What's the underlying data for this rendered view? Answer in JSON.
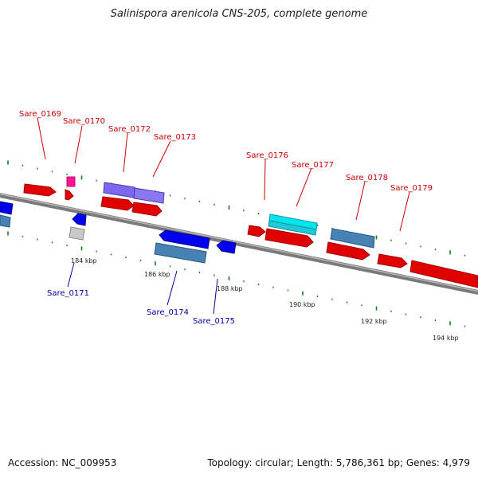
{
  "title": "Salinispora arenicola CNS-205, complete genome",
  "footer": {
    "accession": "Accession: NC_009953",
    "summary": "Topology: circular; Length: 5,786,361 bp; Genes: 4,979"
  },
  "colors": {
    "backbone": "#7a7a7a",
    "forward_gene": "#ff0000",
    "reverse_gene": "#0000ee",
    "steelblue_gene": "#4682b4",
    "purple_gene": "#7b68ee",
    "cyan_gene": "#00e5ee",
    "pink_gene": "#ff1493",
    "gray_gene": "#c8c8c8",
    "tick": "#1a7a1a",
    "forward_label": "#cc0000",
    "reverse_label": "#0000aa"
  },
  "scale_labels": [
    "184 kbp",
    "186 kbp",
    "188 kbp",
    "190 kbp",
    "192 kbp",
    "194 kbp"
  ],
  "gene_labels_top": [
    "Sare_0169",
    "Sare_0170",
    "Sare_0172",
    "Sare_0173",
    "Sare_0176",
    "Sare_0177",
    "Sare_0178",
    "Sare_0179"
  ],
  "gene_labels_bottom": [
    "Sare_0171",
    "Sare_0174",
    "Sare_0175"
  ]
}
